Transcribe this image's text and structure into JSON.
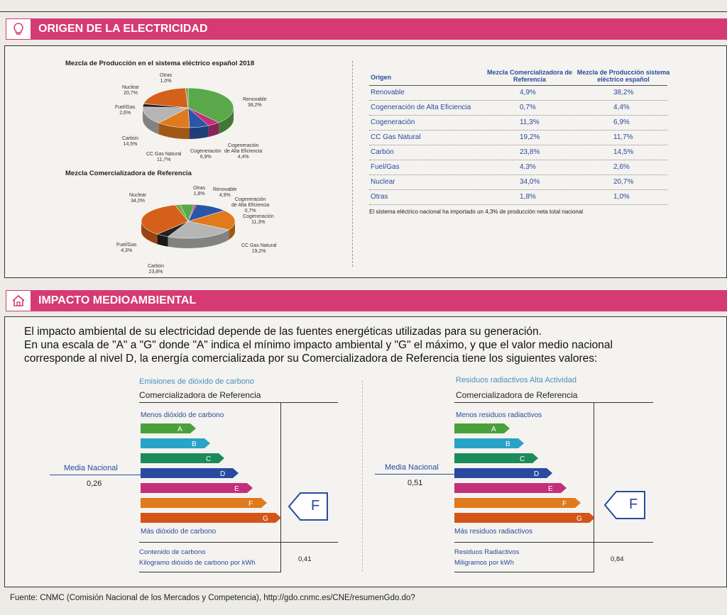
{
  "section1": {
    "title": "ORIGEN DE LA ELECTRICIDAD",
    "icon": "lightbulb-icon"
  },
  "chart1": {
    "title": "Mezcla de Producción en el sistema eléctrico español 2018",
    "labels": {
      "otras": [
        "Otras",
        "1,0%"
      ],
      "nuclear": [
        "Nuclear",
        "20,7%"
      ],
      "fuel": [
        "Fuel/Gas",
        "2,6%"
      ],
      "carbon": [
        "Carbón",
        "14,5%"
      ],
      "ccgas": [
        "CC Gas Natural",
        "11,7%"
      ],
      "cogen": [
        "Cogeneración",
        "6,9%"
      ],
      "cogenAlta": [
        "Cogeneración",
        "de Alta Eficiencia",
        "4,4%"
      ],
      "renovable": [
        "Renovable",
        "38,2%"
      ]
    }
  },
  "chart2": {
    "title": "Mezcla Comercializadora de Referencia",
    "labels": {
      "otras": [
        "Otras",
        "1,8%"
      ],
      "renovable": [
        "Renovable",
        "4,9%"
      ],
      "nuclear": [
        "Nuclear",
        "34,0%"
      ],
      "cogenAlta": [
        "Cogeneración",
        "de Alta Eficiencia",
        "0,7%"
      ],
      "cogen": [
        "Cogeneración",
        "11,3%"
      ],
      "fuel": [
        "Fuel/Gas",
        "4,3%"
      ],
      "ccgas": [
        "CC Gas Natural",
        "19,2%"
      ],
      "carbon": [
        "Carbón",
        "23,8%"
      ]
    }
  },
  "chart_data": [
    {
      "type": "pie",
      "title": "Mezcla de Producción en el sistema eléctrico español 2018",
      "categories": [
        "Renovable",
        "Cogeneración de Alta Eficiencia",
        "Cogeneración",
        "CC Gas Natural",
        "Carbón",
        "Fuel/Gas",
        "Nuclear",
        "Otras"
      ],
      "values": [
        38.2,
        4.4,
        6.9,
        11.7,
        14.5,
        2.6,
        20.7,
        1.0
      ]
    },
    {
      "type": "pie",
      "title": "Mezcla Comercializadora de Referencia",
      "categories": [
        "Renovable",
        "Cogeneración de Alta Eficiencia",
        "Cogeneración",
        "CC Gas Natural",
        "Carbón",
        "Fuel/Gas",
        "Nuclear",
        "Otras"
      ],
      "values": [
        4.9,
        0.7,
        11.3,
        19.2,
        23.8,
        4.3,
        34.0,
        1.8
      ]
    }
  ],
  "colors": {
    "renovable": "#59a84a",
    "cogenAlta": "#c2307a",
    "cogen": "#2a55a8",
    "ccgas": "#e07a1c",
    "carbon": "#b5b5b5",
    "fuel": "#222222",
    "nuclear": "#d4601a",
    "otras": "#7fa14a"
  },
  "table": {
    "headers": [
      "Origen",
      "Mezcla Comercializadora de Referencia",
      "Mezcla de Producción sistema eléctrico español"
    ],
    "rows": [
      [
        "Renovable",
        "4,9%",
        "38,2%"
      ],
      [
        "Cogeneración de Alta Eficiencia",
        "0,7%",
        "4,4%"
      ],
      [
        "Cogeneración",
        "11,3%",
        "6,9%"
      ],
      [
        "CC Gas Natural",
        "19,2%",
        "11,7%"
      ],
      [
        "Carbón",
        "23,8%",
        "14,5%"
      ],
      [
        "Fuel/Gas",
        "4,3%",
        "2,6%"
      ],
      [
        "Nuclear",
        "34,0%",
        "20,7%"
      ],
      [
        "Otras",
        "1,8%",
        "1,0%"
      ]
    ],
    "note": "El sistema eléctrico nacional ha importado un 4,3% de producción neta total nacional"
  },
  "section2": {
    "title": "IMPACTO MEDIOAMBIENTAL",
    "icon": "home-icon",
    "paragraph": [
      "El impacto ambiental de su electricidad depende de las fuentes energéticas utilizadas para su generación.",
      "En una escala de \"A\" a \"G\" donde \"A\" indica el mínimo impacto ambiental y \"G\" el máximo, y que el valor medio nacional",
      "corresponde al nivel D, la energía comercializada por su Comercializadora de Referencia tiene los siguientes valores:"
    ]
  },
  "co2": {
    "title": "Emisiones de dióxido de carbono",
    "subtitle": "Comercializadora de Referencia",
    "top": "Menos dióxido de carbono",
    "bottom": "Más dióxido de carbono",
    "media_label": "Media Nacional",
    "media_value": "0,26",
    "rating": "F",
    "footer1": "Contenido de carbono",
    "footer2": "Kilogramo dióxido de carbono por kWh",
    "value": "0,41"
  },
  "rad": {
    "title": "Residuos radiactivos Alta Actividad",
    "subtitle": "Comercializadora de Referencia",
    "top": "Menos residuos radiactivos",
    "bottom": "Más residuos radiactivos",
    "media_label": "Media Nacional",
    "media_value": "0,51",
    "rating": "F",
    "footer1": "Residuos Radiactivos",
    "footer2": "Miligramos por kWh",
    "value": "0,84"
  },
  "grades": [
    "A",
    "B",
    "C",
    "D",
    "E",
    "F",
    "G"
  ],
  "gradeColors": [
    "#4aa03c",
    "#2aa3c8",
    "#1d8a5a",
    "#2a4aa0",
    "#c2307a",
    "#e07a1c",
    "#d4541a"
  ],
  "footer": "Fuente: CNMC (Comisión Nacional de los Mercados y Competencia), http://gdo.cnmc.es/CNE/resumenGdo.do?"
}
